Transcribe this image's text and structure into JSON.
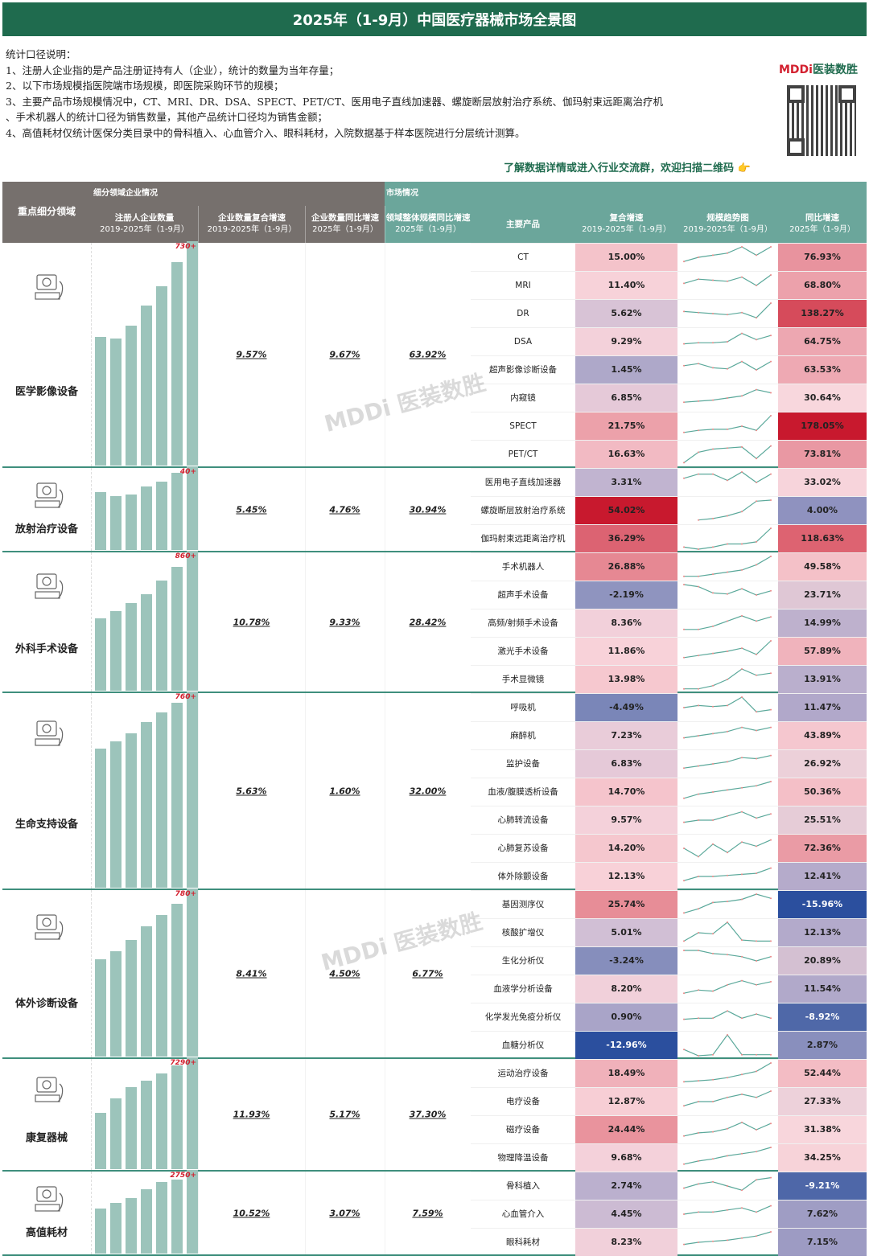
{
  "title": "2025年（1-9月）中国医疗器械市场全景图",
  "notes": [
    "统计口径说明：",
    "1、注册人企业指的是产品注册证持有人（企业），统计的数量为当年存量；",
    "2、以下市场规模指医院端市场规模，即医院采购环节的规模；",
    "3、主要产品市场规模情况中，CT、MRI、DR、DSA、SPECT、PET/CT、医用电子直线加速器、螺旋断层放射治疗系统、伽玛射束远距离治疗机",
    "、手术机器人的统计口径为销售数量，其他产品统计口径均为销售金额；",
    "4、高值耗材仅统计医保分类目录中的骨科植入、心血管介入、眼科耗材，入院数据基于样本医院进行分层统计测算。"
  ],
  "brand": {
    "latin": "MDDi",
    "cn": "医装数胜"
  },
  "cta": "了解数据详情或进入行业交流群，欢迎扫描二维码",
  "cta_icon": "pointing-hand-icon",
  "watermark": "MDDi 医装数胜",
  "header": {
    "domain": "重点细分领域",
    "group_enterprise": "细分领域企业情况",
    "group_market": "市场情况",
    "cols": [
      {
        "t": "注册人企业数量",
        "s": "2019-2025年（1-9月）"
      },
      {
        "t": "企业数量复合增速",
        "s": "2019-2025年（1-9月）"
      },
      {
        "t": "企业数量同比增速",
        "s": "2025年（1-9月）"
      },
      {
        "t": "领域整体规模同比增速",
        "s": "2025年（1-9月）"
      },
      {
        "t": "主要产品",
        "s": ""
      },
      {
        "t": "复合增速",
        "s": "2019-2025年（1-9月）"
      },
      {
        "t": "规模趋势图",
        "s": "2019-2025年（1-9月）"
      },
      {
        "t": "同比增速",
        "s": "2025年（1-9月）"
      }
    ]
  },
  "colors": {
    "title_bg": "#1f6b4e",
    "header_enterprise": "#76706d",
    "header_market": "#6ba69b",
    "bar": "#9cc4bb",
    "spark": "#5aa89a",
    "negative": "#2b4f9e",
    "positive": "#c8192e"
  },
  "sections": [
    {
      "name": "医学影像设备",
      "icon": "ultrasound-machine-icon",
      "count_label": "730+",
      "bars": [
        0.59,
        0.58,
        0.64,
        0.73,
        0.82,
        0.93,
        1
      ],
      "cagr": "9.57%",
      "yoy": "9.67%",
      "market_yoy": "63.92%",
      "products": [
        {
          "name": "CT",
          "cagr": 15.0,
          "yoy": 76.93,
          "trend": [
            0.3,
            0.5,
            0.6,
            0.7,
            1,
            0.6,
            1
          ]
        },
        {
          "name": "MRI",
          "cagr": 11.4,
          "yoy": 68.8,
          "trend": [
            0.6,
            0.8,
            0.75,
            0.7,
            0.9,
            0.5,
            1
          ]
        },
        {
          "name": "DR",
          "cagr": 5.62,
          "yoy": 138.27,
          "trend": [
            0.6,
            0.55,
            0.5,
            0.45,
            0.55,
            0.3,
            1
          ]
        },
        {
          "name": "DSA",
          "cagr": 9.29,
          "yoy": 64.75,
          "trend": [
            0.4,
            0.45,
            0.45,
            0.5,
            0.9,
            0.6,
            0.8
          ]
        },
        {
          "name": "超声影像诊断设备",
          "cagr": 1.45,
          "yoy": 63.53,
          "trend": [
            0.7,
            0.8,
            0.6,
            0.55,
            0.9,
            0.5,
            0.9
          ]
        },
        {
          "name": "内窥镜",
          "cagr": 6.85,
          "yoy": 30.64,
          "trend": [
            0.3,
            0.35,
            0.4,
            0.5,
            0.6,
            0.9,
            0.75
          ]
        },
        {
          "name": "SPECT",
          "cagr": 21.75,
          "yoy": 178.05,
          "trend": [
            0.2,
            0.3,
            0.35,
            0.35,
            0.5,
            0.3,
            1
          ]
        },
        {
          "name": "PET/CT",
          "cagr": 16.63,
          "yoy": 73.81,
          "trend": [
            0.1,
            0.6,
            0.75,
            0.8,
            0.85,
            0.3,
            0.9
          ]
        }
      ]
    },
    {
      "name": "放射治疗设备",
      "icon": "radiotherapy-machine-icon",
      "count_label": "40+",
      "bars": [
        0.74,
        0.69,
        0.71,
        0.81,
        0.88,
        0.99,
        1
      ],
      "cagr": "5.45%",
      "yoy": "4.76%",
      "market_yoy": "30.94%",
      "products": [
        {
          "name": "医用电子直线加速器",
          "cagr": 3.31,
          "yoy": 33.02,
          "trend": [
            0.7,
            0.9,
            0.9,
            0.6,
            1,
            0.5,
            0.9
          ]
        },
        {
          "name": "螺旋断层放射治疗系统",
          "cagr": 54.02,
          "yoy": 4.0,
          "trend": [
            null,
            0.05,
            0.12,
            0.25,
            0.45,
            0.95,
            1
          ]
        },
        {
          "name": "伽玛射束远距离治疗机",
          "cagr": 36.29,
          "yoy": 118.63,
          "trend": [
            0.1,
            0,
            0.1,
            0.25,
            0.25,
            0.35,
            1
          ]
        }
      ]
    },
    {
      "name": "外科手术设备",
      "icon": "surgical-robot-icon",
      "count_label": "860+",
      "bars": [
        0.54,
        0.59,
        0.65,
        0.72,
        0.82,
        0.92,
        1
      ],
      "cagr": "10.78%",
      "yoy": "9.33%",
      "market_yoy": "28.42%",
      "products": [
        {
          "name": "手术机器人",
          "cagr": 26.88,
          "yoy": 49.58,
          "trend": [
            0.05,
            0.05,
            0.15,
            0.25,
            0.35,
            0.6,
            1
          ]
        },
        {
          "name": "超声手术设备",
          "cagr": -2.19,
          "yoy": 23.71,
          "trend": [
            1,
            0.9,
            0.6,
            0.55,
            0.8,
            0.5,
            0.7
          ]
        },
        {
          "name": "高频/射频手术设备",
          "cagr": 8.36,
          "yoy": 14.99,
          "trend": [
            0.2,
            0.2,
            0.35,
            0.6,
            0.85,
            0.6,
            0.8
          ]
        },
        {
          "name": "激光手术设备",
          "cagr": 11.86,
          "yoy": 57.89,
          "trend": [
            0.2,
            0.3,
            0.4,
            0.5,
            0.65,
            0.35,
            1
          ]
        },
        {
          "name": "手术显微镜",
          "cagr": 13.98,
          "yoy": 13.91,
          "trend": [
            0.05,
            0.05,
            0.2,
            0.5,
            1,
            0.7,
            0.8
          ]
        }
      ]
    },
    {
      "name": "生命支持设备",
      "icon": "ventilator-icon",
      "count_label": "760+",
      "bars": [
        0.73,
        0.77,
        0.81,
        0.87,
        0.92,
        0.97,
        1
      ],
      "cagr": "5.63%",
      "yoy": "1.60%",
      "market_yoy": "32.00%",
      "products": [
        {
          "name": "呼吸机",
          "cagr": -4.49,
          "yoy": 11.47,
          "trend": [
            0.5,
            0.6,
            0.55,
            0.6,
            1,
            0.3,
            0.4
          ]
        },
        {
          "name": "麻醉机",
          "cagr": 7.23,
          "yoy": 43.89,
          "trend": [
            0.4,
            0.5,
            0.6,
            0.7,
            0.9,
            0.75,
            0.9
          ]
        },
        {
          "name": "监护设备",
          "cagr": 6.83,
          "yoy": 26.92,
          "trend": [
            0.3,
            0.4,
            0.5,
            0.6,
            0.8,
            0.75,
            0.9
          ]
        },
        {
          "name": "血液/腹膜透析设备",
          "cagr": 14.7,
          "yoy": 50.36,
          "trend": [
            0.2,
            0.4,
            0.5,
            0.6,
            0.7,
            0.8,
            1
          ]
        },
        {
          "name": "心肺转流设备",
          "cagr": 9.57,
          "yoy": 25.51,
          "trend": [
            0.4,
            0.5,
            0.5,
            0.7,
            0.9,
            0.6,
            0.8
          ]
        },
        {
          "name": "心肺复苏设备",
          "cagr": 14.2,
          "yoy": 72.36,
          "trend": [
            0.5,
            0.1,
            0.7,
            0.3,
            0.8,
            0.6,
            0.9
          ]
        },
        {
          "name": "体外除颤设备",
          "cagr": 12.13,
          "yoy": 12.41,
          "trend": [
            0.3,
            0.5,
            0.5,
            0.55,
            0.6,
            0.65,
            0.9
          ]
        }
      ]
    },
    {
      "name": "体外诊断设备",
      "icon": "microscope-icon",
      "count_label": "780+",
      "bars": [
        0.6,
        0.65,
        0.72,
        0.8,
        0.87,
        0.94,
        1
      ],
      "cagr": "8.41%",
      "yoy": "4.50%",
      "market_yoy": "6.77%",
      "products": [
        {
          "name": "基因测序仪",
          "cagr": 25.74,
          "yoy": -15.96,
          "trend": [
            0.1,
            0.3,
            0.6,
            0.65,
            0.75,
            1,
            0.8
          ]
        },
        {
          "name": "核酸扩增仪",
          "cagr": 5.01,
          "yoy": 12.13,
          "trend": [
            0.1,
            0.5,
            0.45,
            1,
            0.15,
            0.1,
            0.1
          ]
        },
        {
          "name": "生化分析仪",
          "cagr": -3.24,
          "yoy": 20.89,
          "trend": [
            1,
            1,
            0.85,
            0.8,
            0.7,
            0.5,
            0.7
          ]
        },
        {
          "name": "血液学分析设备",
          "cagr": 8.2,
          "yoy": 11.54,
          "trend": [
            0.3,
            0.45,
            0.4,
            0.7,
            0.9,
            0.7,
            0.85
          ]
        },
        {
          "name": "化学发光免疫分析仪",
          "cagr": 0.9,
          "yoy": -8.92,
          "trend": [
            0.4,
            0.45,
            0.45,
            0.8,
            0.45,
            0.65,
            0.45
          ]
        },
        {
          "name": "血糖分析仪",
          "cagr": -12.96,
          "yoy": 2.87,
          "trend": [
            0.3,
            0,
            0.05,
            1,
            0.05,
            0.05,
            0.05
          ]
        }
      ]
    },
    {
      "name": "康复器械",
      "icon": "rehabilitation-device-icon",
      "count_label": "7290+",
      "bars": [
        0.53,
        0.67,
        0.77,
        0.83,
        0.9,
        0.98,
        1
      ],
      "cagr": "11.93%",
      "yoy": "5.17%",
      "market_yoy": "37.30%",
      "products": [
        {
          "name": "运动治疗设备",
          "cagr": 18.49,
          "yoy": 52.44,
          "trend": [
            0.1,
            0.15,
            0.2,
            0.3,
            0.45,
            0.6,
            1
          ]
        },
        {
          "name": "电疗设备",
          "cagr": 12.87,
          "yoy": 27.33,
          "trend": [
            0.3,
            0.5,
            0.5,
            0.7,
            0.85,
            0.7,
            1
          ]
        },
        {
          "name": "磁疗设备",
          "cagr": 24.44,
          "yoy": 31.38,
          "trend": [
            0.2,
            0.35,
            0.4,
            0.55,
            0.85,
            0.5,
            0.8
          ]
        },
        {
          "name": "物理降温设备",
          "cagr": 9.68,
          "yoy": 34.25,
          "trend": [
            0.2,
            0.35,
            0.45,
            0.6,
            0.7,
            0.8,
            1
          ]
        }
      ]
    },
    {
      "name": "高值耗材",
      "icon": "catheter-icon",
      "count_label": "2750+",
      "bars": [
        0.58,
        0.65,
        0.71,
        0.82,
        0.92,
        0.95,
        1
      ],
      "cagr": "10.52%",
      "yoy": "3.07%",
      "market_yoy": "7.59%",
      "products": [
        {
          "name": "骨科植入",
          "cagr": 2.74,
          "yoy": -9.21,
          "trend": [
            0.4,
            0.6,
            0.7,
            0.5,
            0.3,
            0.8,
            0.9
          ]
        },
        {
          "name": "心血管介入",
          "cagr": 4.45,
          "yoy": 7.62,
          "trend": [
            0.5,
            0.6,
            0.6,
            0.7,
            0.8,
            0.6,
            0.9
          ]
        },
        {
          "name": "眼科耗材",
          "cagr": 8.23,
          "yoy": 7.15,
          "trend": [
            0.4,
            0.5,
            0.55,
            0.6,
            0.7,
            0.8,
            1
          ]
        }
      ]
    }
  ]
}
